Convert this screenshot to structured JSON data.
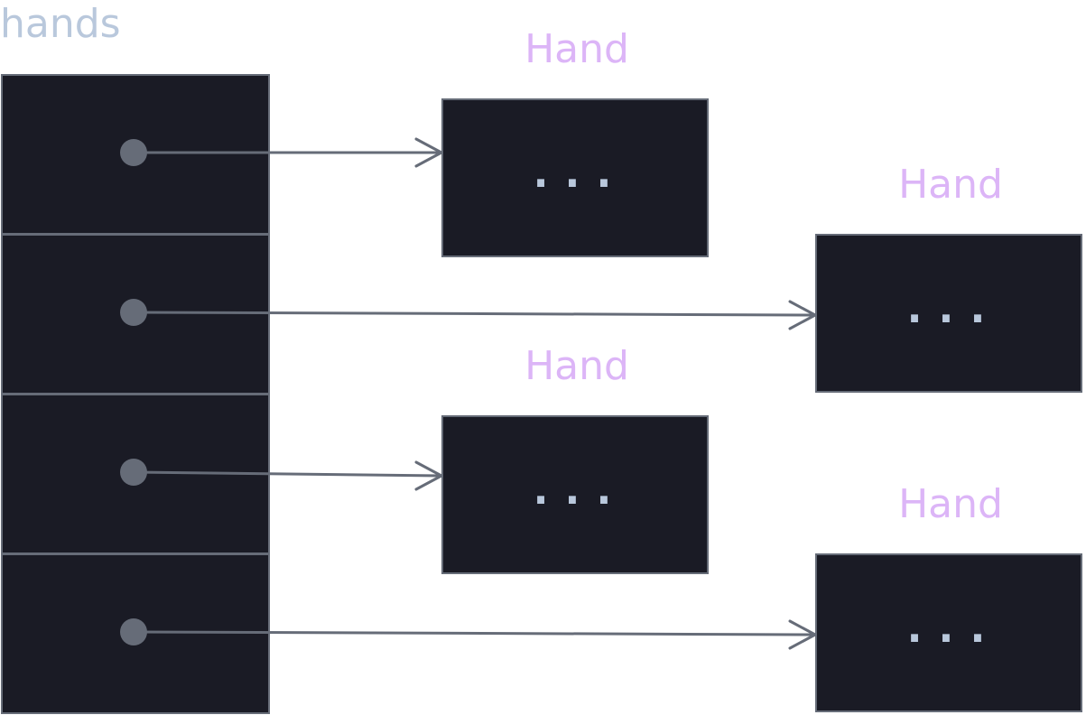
{
  "array": {
    "name": "hands",
    "cell_count": 4
  },
  "hands": [
    {
      "label": "Hand",
      "content": "..."
    },
    {
      "label": "Hand",
      "content": "..."
    },
    {
      "label": "Hand",
      "content": "..."
    },
    {
      "label": "Hand",
      "content": "..."
    }
  ],
  "colors": {
    "background": "#ffffff",
    "box_fill": "#1a1b25",
    "border": "#666c78",
    "array_label": "#b9c8dc",
    "hand_label": "#dcb5f7",
    "dots": "#b9c8dc",
    "pointer": "#666c78"
  }
}
